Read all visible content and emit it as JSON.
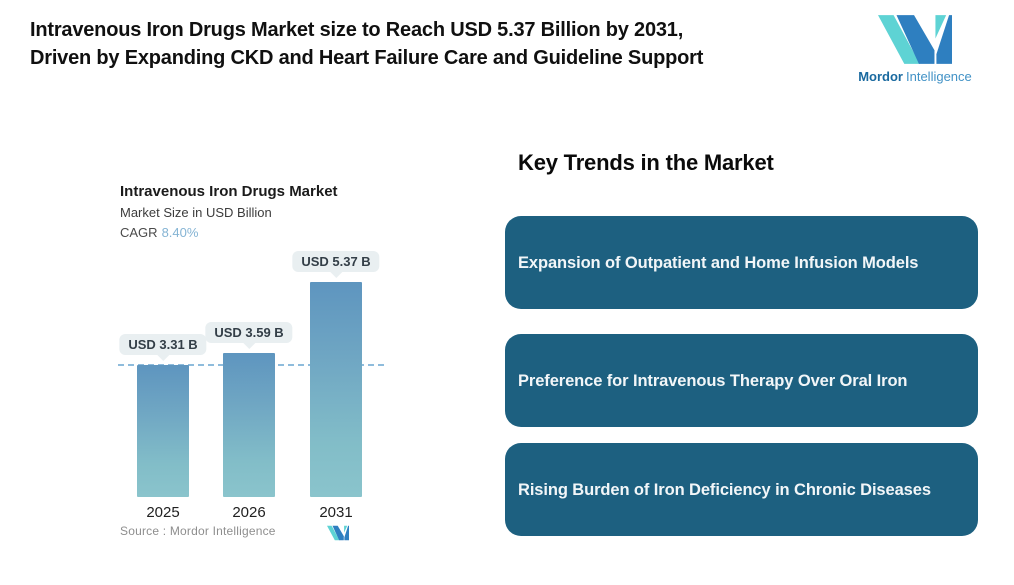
{
  "page": {
    "background": "#ffffff"
  },
  "header": {
    "title": "Intravenous Iron Drugs Market size to Reach USD 5.37 Billion by 2031, Driven by Expanding CKD and Heart Failure Care and Guideline Support"
  },
  "brand": {
    "name_bold": "Mordor",
    "name_light": "Intelligence",
    "colors": {
      "logo_teal": "#5ed3d4",
      "logo_blue": "#2e7fc0",
      "text_bold": "#19699f",
      "text_light": "#4292c6"
    }
  },
  "chart_data": {
    "type": "bar",
    "title": "Intravenous Iron Drugs Market",
    "subtitle": "Market Size in USD Billion",
    "cagr_label": "CAGR",
    "cagr_value": "8.40%",
    "categories": [
      "2025",
      "2026",
      "2031"
    ],
    "values": [
      3.31,
      3.59,
      5.37
    ],
    "data_labels": [
      "USD 3.31 B",
      "USD 3.59 B",
      "USD 5.37 B"
    ],
    "unit": "USD Billion",
    "ylim": [
      0,
      6
    ],
    "grid": false,
    "legend": false,
    "reference_line_value": 3.31,
    "reference_line_style": "dashed",
    "reference_line_color": "#8fbcdc",
    "bar_gradient_top": "#5e95bf",
    "bar_gradient_bottom": "#8ac4cc",
    "label_tag_bg": "#e9eff1",
    "cagr_value_color": "#85b4d4",
    "source": "Source :  Mordor Intelligence"
  },
  "trends": {
    "heading": "Key Trends in the Market",
    "box_color": "#1d6080",
    "items": [
      "Expansion of Outpatient and Home Infusion Models",
      "Preference for Intravenous Therapy Over Oral Iron",
      "Rising Burden of Iron Deficiency in Chronic Diseases"
    ]
  }
}
